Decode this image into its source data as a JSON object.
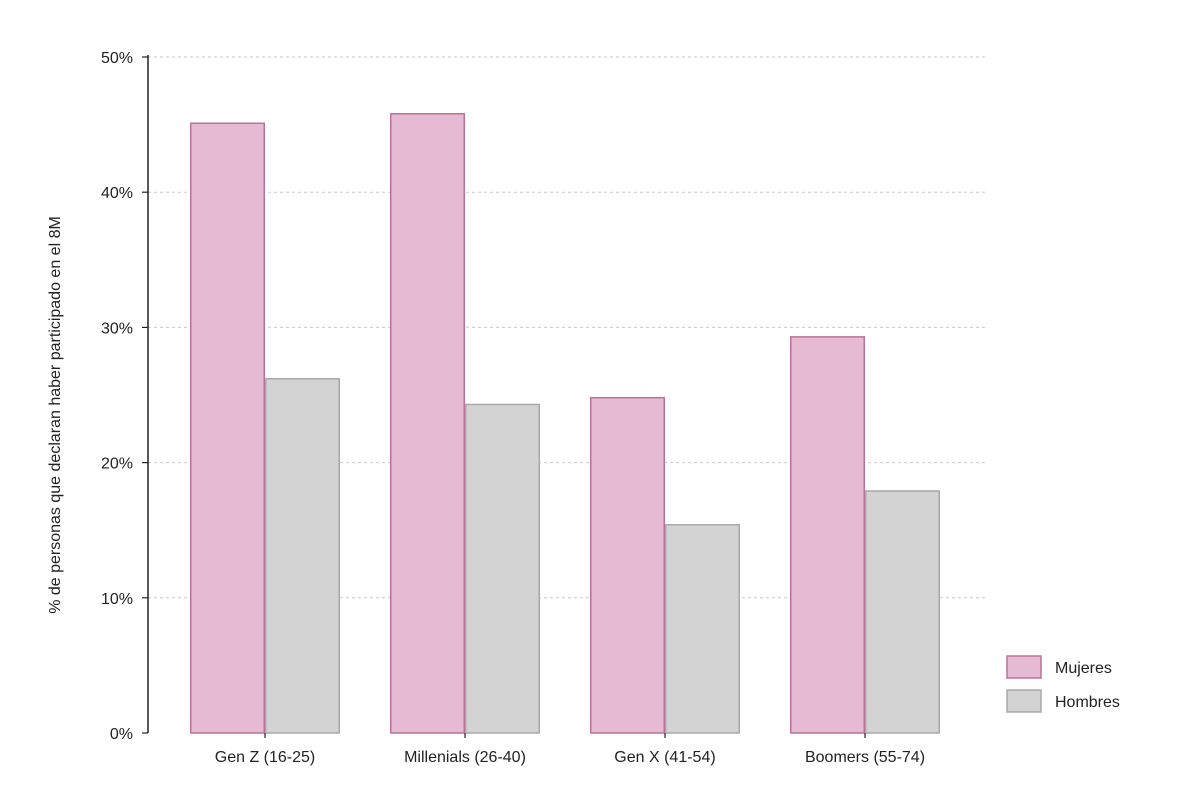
{
  "chart_data": {
    "type": "bar",
    "ylabel": "% de personas que declaran haber participado en el 8M",
    "xlabel": "",
    "categories": [
      "Gen Z (16-25)",
      "Millenials (26-40)",
      "Gen X (41-54)",
      "Boomers (55-74)"
    ],
    "series": [
      {
        "name": "Mujeres",
        "values": [
          45.1,
          45.8,
          24.8,
          29.3
        ],
        "color": "#e6bad2",
        "stroke": "#b9739a"
      },
      {
        "name": "Hombres",
        "values": [
          26.2,
          24.3,
          15.4,
          17.9
        ],
        "color": "#d3d3d3",
        "stroke": "#a8a8a8"
      }
    ],
    "ylim": [
      0,
      50
    ],
    "yticks": [
      0,
      10,
      20,
      30,
      40,
      50
    ],
    "ytick_labels": [
      "0%",
      "10%",
      "20%",
      "30%",
      "40%",
      "50%"
    ],
    "grid": true,
    "legend_position": "bottom-right"
  }
}
